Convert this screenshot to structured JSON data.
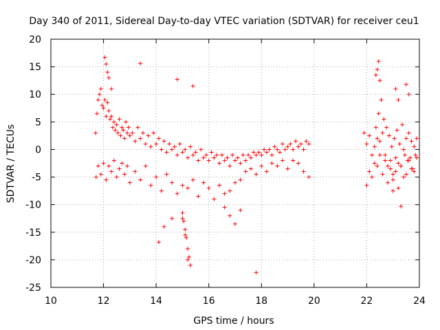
{
  "chart_data": {
    "type": "scatter",
    "title": "Day 340 of 2011, Sidereal Day-to-day VTEC variation (SDTVAR) for receiver ceu1",
    "xlabel": "GPS time / hours",
    "ylabel": "SDTVAR / TECUs",
    "xlim": [
      10,
      24
    ],
    "ylim": [
      -25,
      20
    ],
    "xticks": [
      10,
      12,
      14,
      16,
      18,
      20,
      22,
      24
    ],
    "yticks": [
      -25,
      -20,
      -15,
      -10,
      -5,
      0,
      5,
      10,
      15,
      20
    ],
    "grid": true,
    "marker": "+",
    "color": "#ff0000",
    "series": [
      {
        "name": "ceu1",
        "x": [
          11.7,
          11.75,
          11.8,
          11.85,
          11.9,
          11.95,
          12.0,
          12.05,
          12.1,
          12.15,
          12.2,
          12.25,
          12.3,
          12.35,
          12.4,
          12.45,
          12.5,
          12.55,
          12.6,
          12.65,
          12.7,
          12.75,
          12.8,
          12.85,
          12.9,
          12.95,
          13.0,
          13.1,
          13.2,
          13.3,
          13.4,
          13.5,
          13.6,
          13.7,
          13.8,
          13.9,
          14.0,
          14.1,
          14.2,
          14.3,
          14.4,
          14.5,
          14.6,
          14.7,
          14.8,
          14.9,
          15.0,
          15.1,
          15.2,
          15.3,
          15.4,
          15.5,
          15.6,
          15.7,
          15.8,
          15.9,
          16.0,
          16.1,
          16.2,
          16.3,
          16.4,
          16.5,
          16.6,
          16.7,
          16.8,
          16.9,
          17.0,
          17.1,
          17.2,
          17.3,
          17.4,
          17.5,
          17.6,
          17.7,
          17.8,
          17.9,
          18.0,
          18.1,
          18.2,
          18.3,
          18.4,
          18.5,
          18.6,
          18.7,
          18.8,
          18.9,
          19.0,
          19.1,
          19.2,
          19.3,
          19.4,
          19.5,
          19.6,
          19.7,
          19.8,
          11.72,
          11.8,
          11.9,
          12.0,
          12.1,
          12.2,
          12.3,
          12.4,
          12.5,
          12.6,
          12.7,
          12.8,
          12.9,
          13.0,
          13.2,
          13.4,
          13.6,
          13.8,
          14.0,
          14.2,
          14.4,
          14.6,
          14.8,
          15.0,
          15.2,
          15.4,
          15.6,
          15.8,
          16.0,
          16.2,
          16.4,
          16.6,
          16.8,
          17.0,
          17.2,
          17.4,
          17.6,
          17.8,
          18.0,
          18.2,
          18.4,
          18.6,
          18.8,
          19.0,
          19.2,
          19.4,
          19.6,
          19.8,
          12.05,
          12.1,
          12.15,
          12.2,
          12.3,
          13.4,
          14.8,
          15.4,
          15.0,
          15.05,
          15.1,
          15.15,
          15.2,
          15.25,
          15.3,
          15.0,
          15.1,
          15.2,
          14.1,
          14.3,
          14.6,
          17.8,
          17.0,
          17.2,
          16.6,
          16.8,
          21.9,
          22.0,
          22.1,
          22.2,
          22.3,
          22.35,
          22.4,
          22.45,
          22.5,
          22.55,
          22.6,
          22.65,
          22.7,
          22.75,
          22.8,
          22.85,
          22.9,
          22.95,
          23.0,
          23.05,
          23.1,
          23.15,
          23.2,
          23.25,
          23.3,
          23.35,
          23.4,
          23.45,
          23.5,
          23.55,
          23.6,
          23.65,
          23.7,
          23.75,
          23.8,
          23.85,
          23.9,
          22.0,
          22.1,
          22.2,
          22.3,
          22.4,
          22.5,
          22.6,
          22.7,
          22.8,
          22.9,
          23.0,
          23.1,
          23.2,
          23.3,
          23.4,
          23.5,
          23.6,
          23.7,
          23.8,
          23.9,
          22.4,
          22.45,
          22.5,
          22.35,
          23.5,
          23.6,
          23.1,
          23.2,
          23.3,
          23.0
        ],
        "y": [
          3.0,
          6.5,
          9.0,
          10.0,
          11.0,
          8.0,
          7.5,
          9.0,
          6.0,
          8.5,
          7.0,
          5.5,
          6.0,
          4.0,
          5.0,
          3.5,
          4.5,
          3.0,
          5.5,
          2.5,
          4.0,
          3.5,
          2.0,
          5.0,
          3.0,
          4.0,
          2.5,
          3.0,
          1.5,
          4.0,
          2.0,
          3.0,
          1.0,
          2.5,
          0.5,
          3.0,
          1.0,
          2.0,
          0.0,
          1.5,
          -0.5,
          1.0,
          0.0,
          0.5,
          -1.0,
          1.0,
          -0.5,
          0.0,
          -1.5,
          0.5,
          -1.0,
          -0.5,
          -2.0,
          0.0,
          -1.5,
          -1.0,
          -2.0,
          -0.5,
          -1.5,
          -1.0,
          -2.5,
          -1.0,
          -2.0,
          -1.5,
          -3.0,
          -1.0,
          -2.0,
          -1.5,
          -2.5,
          -1.0,
          -2.0,
          -1.0,
          -1.5,
          -0.5,
          -1.0,
          -0.5,
          -1.0,
          0.0,
          -0.5,
          0.0,
          -1.0,
          0.5,
          0.0,
          -0.5,
          1.0,
          0.0,
          0.5,
          1.0,
          0.0,
          1.5,
          0.5,
          1.0,
          0.0,
          1.5,
          1.0,
          -5.0,
          -3.0,
          -4.5,
          -2.5,
          -5.5,
          -3.0,
          -4.0,
          -2.0,
          -5.0,
          -3.5,
          -2.5,
          -4.5,
          -3.0,
          -6.0,
          -4.0,
          -5.5,
          -3.0,
          -6.5,
          -5.0,
          -7.5,
          -4.5,
          -6.0,
          -8.0,
          -6.5,
          -7.0,
          -5.5,
          -8.5,
          -6.0,
          -7.0,
          -9.0,
          -6.5,
          -8.0,
          -7.5,
          -6.0,
          -5.5,
          -4.0,
          -3.5,
          -4.5,
          -3.0,
          -4.0,
          -2.5,
          -3.0,
          -2.0,
          -3.5,
          -2.0,
          -2.5,
          -4.0,
          -5.0,
          16.7,
          15.5,
          14.0,
          13.0,
          11.0,
          15.6,
          12.7,
          11.5,
          -11.5,
          -13.0,
          -14.5,
          -16.0,
          -18.0,
          -19.5,
          -21.0,
          -12.5,
          -15.5,
          -20.0,
          -16.8,
          -14.0,
          -12.5,
          -22.3,
          -13.5,
          -11.0,
          -10.5,
          -12.0,
          3.0,
          1.0,
          2.5,
          -1.0,
          0.5,
          4.0,
          2.0,
          6.5,
          1.5,
          9.0,
          3.0,
          5.5,
          -1.0,
          4.0,
          -3.0,
          2.5,
          -2.0,
          0.5,
          -4.5,
          2.0,
          -1.5,
          3.5,
          -2.5,
          1.0,
          -3.0,
          4.5,
          0.0,
          -1.0,
          2.0,
          -2.0,
          3.0,
          -1.5,
          1.5,
          -3.5,
          0.5,
          -1.0,
          2.0,
          -6.5,
          -4.0,
          -5.0,
          -2.5,
          -3.0,
          -1.0,
          -4.5,
          -2.0,
          -6.0,
          -3.5,
          -5.5,
          -4.0,
          -7.0,
          -3.0,
          -5.0,
          -4.5,
          -2.0,
          -3.5,
          -4.0,
          -1.5,
          14.5,
          16.0,
          12.5,
          13.5,
          11.8,
          10.0,
          11.0,
          9.0,
          -10.3,
          -7.5
        ]
      }
    ]
  }
}
